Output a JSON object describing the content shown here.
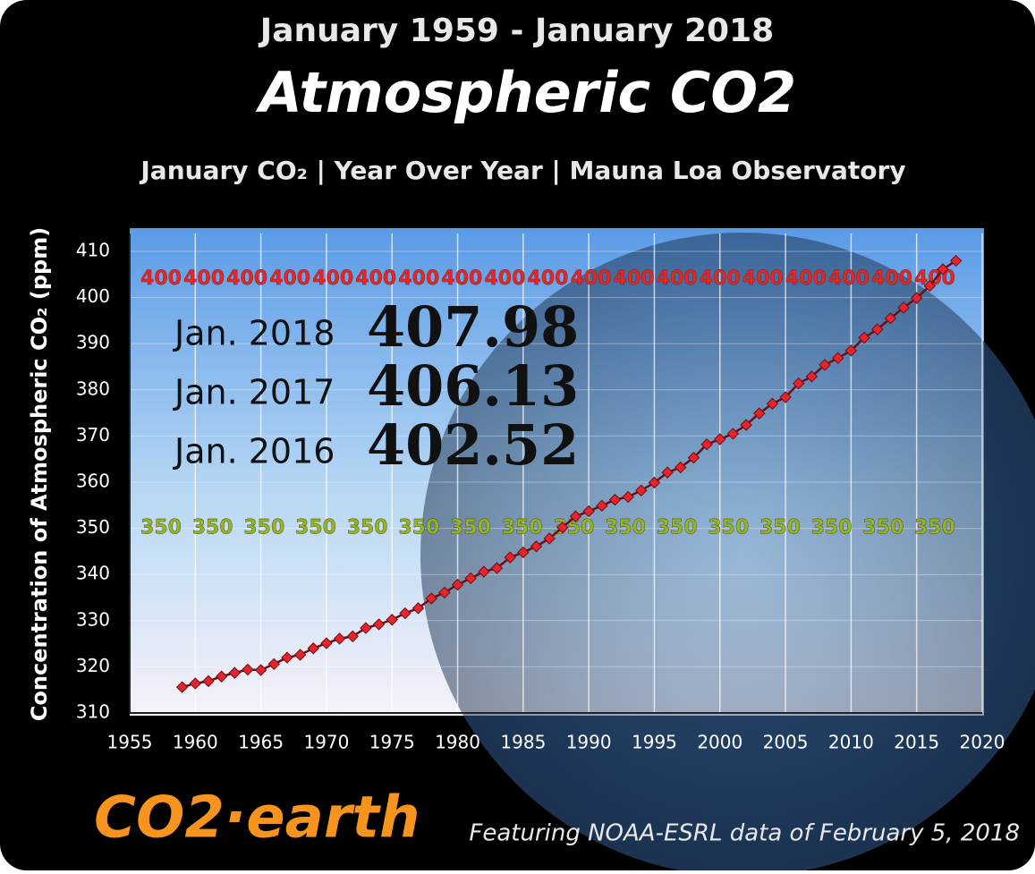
{
  "chart_data": {
    "type": "line",
    "header": "January 1959 - January 2018",
    "title": "Atmospheric CO2",
    "subtitle": "January CO₂  | Year Over Year | Mauna Loa Observatory",
    "y_label": "Concentration of Atmospheric CO₂ (ppm)",
    "brand": "CO2·earth",
    "footnote": "Featuring NOAA-ESRL data of February 5, 2018",
    "callouts": [
      {
        "label": "Jan. 2018",
        "value": 407.98
      },
      {
        "label": "Jan. 2017",
        "value": 406.13
      },
      {
        "label": "Jan. 2016",
        "value": 402.52
      }
    ],
    "reference_rows": [
      {
        "value": 404,
        "color": "#e8232b",
        "labels": [
          400,
          400,
          400,
          400,
          400,
          400,
          400,
          400,
          400,
          400,
          400,
          400,
          400,
          400,
          400,
          400,
          400,
          400,
          400
        ]
      },
      {
        "value": 350,
        "color": "#8db82a",
        "labels": [
          350,
          350,
          350,
          350,
          350,
          350,
          350,
          350,
          350,
          350,
          350,
          350,
          350,
          350,
          350,
          350
        ]
      }
    ],
    "x": [
      1959,
      1960,
      1961,
      1962,
      1963,
      1964,
      1965,
      1966,
      1967,
      1968,
      1969,
      1970,
      1971,
      1972,
      1973,
      1974,
      1975,
      1976,
      1977,
      1978,
      1979,
      1980,
      1981,
      1982,
      1983,
      1984,
      1985,
      1986,
      1987,
      1988,
      1989,
      1990,
      1991,
      1992,
      1993,
      1994,
      1995,
      1996,
      1997,
      1998,
      1999,
      2000,
      2001,
      2002,
      2003,
      2004,
      2005,
      2006,
      2007,
      2008,
      2009,
      2010,
      2011,
      2012,
      2013,
      2014,
      2015,
      2016,
      2017,
      2018
    ],
    "series": [
      {
        "name": "January CO₂",
        "color": "#e8232b",
        "values": [
          315.6,
          316.4,
          316.9,
          317.9,
          318.7,
          319.4,
          319.3,
          320.6,
          322.0,
          322.6,
          324.0,
          325.1,
          326.1,
          326.6,
          328.4,
          329.2,
          330.2,
          331.6,
          332.7,
          334.8,
          336.1,
          337.8,
          339.2,
          340.6,
          341.4,
          343.7,
          344.8,
          346.1,
          347.8,
          350.2,
          352.6,
          353.7,
          354.9,
          356.2,
          356.8,
          358.2,
          359.9,
          362.1,
          363.2,
          365.3,
          368.2,
          369.3,
          370.5,
          372.4,
          374.9,
          377.0,
          378.4,
          381.4,
          382.9,
          385.4,
          386.9,
          388.5,
          391.3,
          393.1,
          395.5,
          397.8,
          399.9,
          402.52,
          406.13,
          407.98
        ]
      }
    ],
    "xlim": [
      1955,
      2020
    ],
    "xticks": [
      1955,
      1960,
      1965,
      1970,
      1975,
      1980,
      1985,
      1990,
      1995,
      2000,
      2005,
      2010,
      2015,
      2020
    ],
    "ylim": [
      310,
      410
    ],
    "yticks": [
      310,
      320,
      330,
      340,
      350,
      360,
      370,
      380,
      390,
      400,
      410
    ],
    "grid": true
  }
}
